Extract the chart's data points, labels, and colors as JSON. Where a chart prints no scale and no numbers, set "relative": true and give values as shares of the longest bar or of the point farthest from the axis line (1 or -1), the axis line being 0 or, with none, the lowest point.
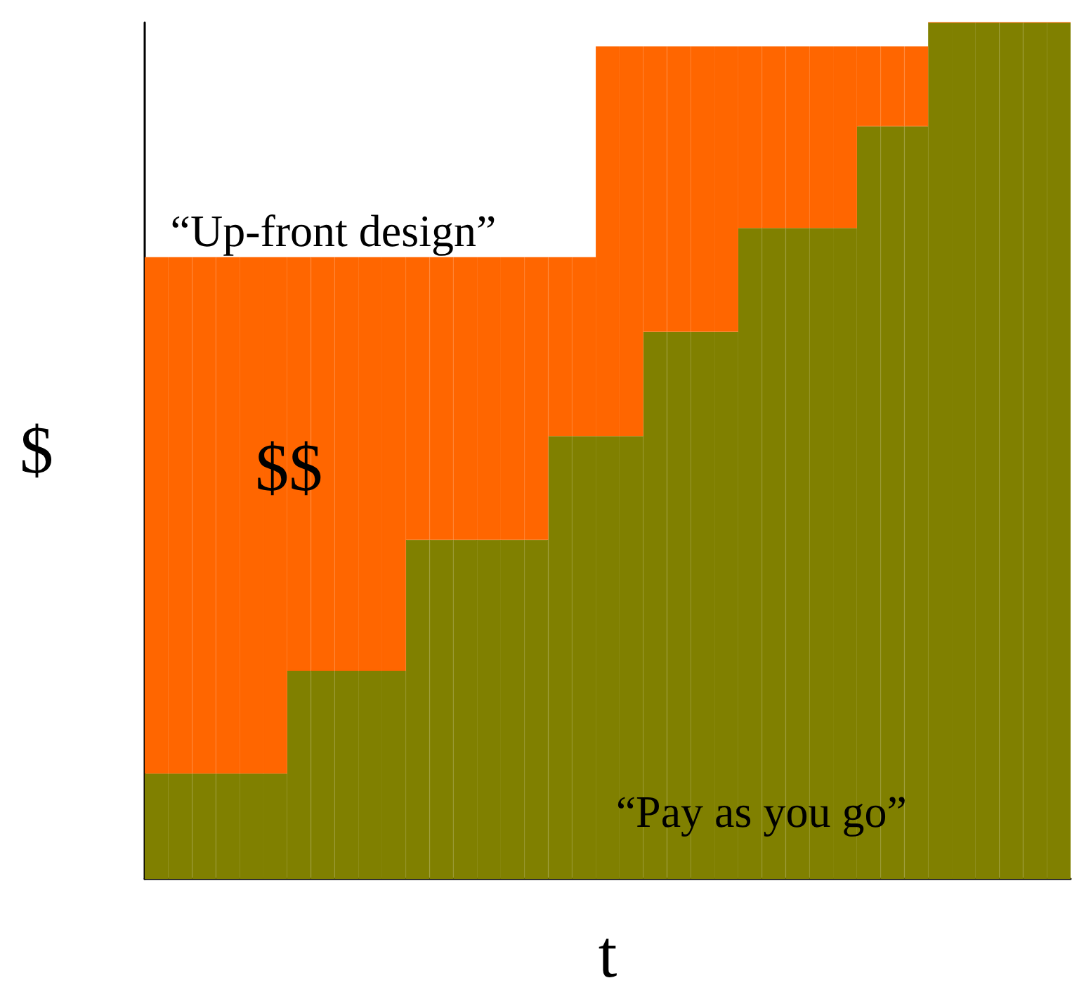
{
  "chart_data": {
    "type": "bar",
    "stacked": true,
    "xlabel": "t",
    "ylabel": "$",
    "relative": true,
    "annotations": [
      "$$"
    ],
    "categories": [
      null,
      null,
      null,
      null,
      null,
      null,
      null,
      null,
      null,
      null,
      null,
      null,
      null,
      null,
      null,
      null,
      null,
      null,
      null,
      null,
      null,
      null,
      null,
      null,
      null,
      null,
      null,
      null,
      null,
      null,
      null,
      null,
      null,
      null,
      null,
      null,
      null,
      null,
      null
    ],
    "series": [
      {
        "name": "“Pay as you go”",
        "color": "#808000",
        "values": [
          0.123,
          0.123,
          0.123,
          0.123,
          0.123,
          0.123,
          0.243,
          0.243,
          0.243,
          0.243,
          0.243,
          0.396,
          0.396,
          0.396,
          0.396,
          0.396,
          0.396,
          0.517,
          0.517,
          0.517,
          0.517,
          0.639,
          0.639,
          0.639,
          0.639,
          0.76,
          0.76,
          0.76,
          0.76,
          0.76,
          0.879,
          0.879,
          0.879,
          1,
          1,
          1,
          1,
          1,
          1
        ]
      },
      {
        "name": "“Up-front design”",
        "color": "#ff6600",
        "values": [
          0.603,
          0.603,
          0.603,
          0.603,
          0.603,
          0.603,
          0.483,
          0.483,
          0.483,
          0.483,
          0.483,
          0.33,
          0.33,
          0.33,
          0.33,
          0.33,
          0.33,
          0.209,
          0.209,
          0.455,
          0.455,
          0.333,
          0.333,
          0.333,
          0.333,
          0.212,
          0.212,
          0.212,
          0.212,
          0.212,
          0.093,
          0.093,
          0.093,
          0,
          0,
          0,
          0,
          0,
          0
        ]
      }
    ]
  }
}
